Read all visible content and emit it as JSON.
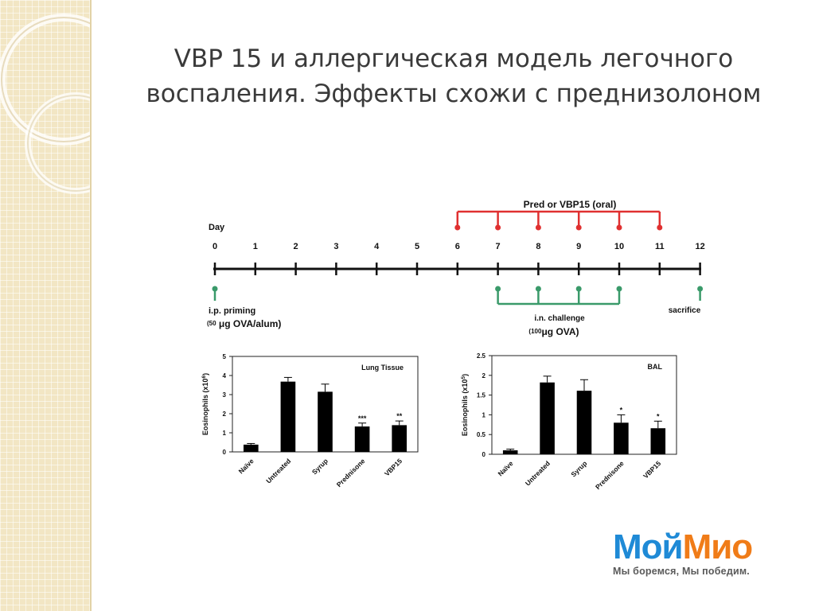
{
  "slide": {
    "title_part1": "VBP 15",
    "title_part2": " и аллергическая модель легочного воспаления. Эффекты схожи с преднизолоном"
  },
  "timeline": {
    "day_label": "Day",
    "days": [
      "0",
      "1",
      "2",
      "3",
      "4",
      "5",
      "6",
      "7",
      "8",
      "9",
      "10",
      "11",
      "12"
    ],
    "treatment_label": "Pred or VBP15 (oral)",
    "treatment_days": [
      6,
      7,
      8,
      9,
      10,
      11
    ],
    "priming_day": 0,
    "priming_label_line1": "i.p. priming",
    "priming_label_line2_num": "(50",
    "priming_label_line2_rest": " μg OVA/alum)",
    "challenge_days": [
      7,
      8,
      9,
      10
    ],
    "challenge_label_line1": "i.n. challenge",
    "challenge_label_line2_num": "(100",
    "challenge_label_line2_rest": "μg OVA)",
    "sacrifice_day": 12,
    "sacrifice_label": "sacrifice",
    "colors": {
      "treatment": "#e03030",
      "challenge": "#3a9a6a",
      "axis": "#111111"
    }
  },
  "chart_data": [
    {
      "type": "bar",
      "title": "Lung Tissue",
      "ylabel_main": "Eosinophils (x10",
      "ylabel_sup": "6",
      "ylabel_end": ")",
      "categories": [
        "Naïve",
        "Untreated",
        "Syrup",
        "Prednisone",
        "VBP15"
      ],
      "values": [
        0.38,
        3.68,
        3.15,
        1.33,
        1.4
      ],
      "errors": [
        0.06,
        0.22,
        0.4,
        0.18,
        0.22
      ],
      "significance": [
        "",
        "",
        "",
        "***",
        "**"
      ],
      "ylim": [
        0,
        5
      ],
      "yticks": [
        "0",
        "1",
        "2",
        "3",
        "4",
        "5"
      ]
    },
    {
      "type": "bar",
      "title": "BAL",
      "ylabel_main": "Eosinophils (x10",
      "ylabel_sup": "5",
      "ylabel_end": ")",
      "categories": [
        "Naïve",
        "Untreated",
        "Syrup",
        "Prednisone",
        "VBP15"
      ],
      "values": [
        0.1,
        1.82,
        1.61,
        0.8,
        0.66
      ],
      "errors": [
        0.03,
        0.16,
        0.28,
        0.2,
        0.18
      ],
      "significance": [
        "",
        "",
        "",
        "*",
        "*"
      ],
      "ylim": [
        0,
        2.5
      ],
      "yticks": [
        "0",
        "0.5",
        "1",
        "1.5",
        "2",
        "2.5"
      ]
    }
  ],
  "logo": {
    "part1": "Мой",
    "part2": "Мио",
    "tagline": "Мы боремся, Мы победим."
  }
}
